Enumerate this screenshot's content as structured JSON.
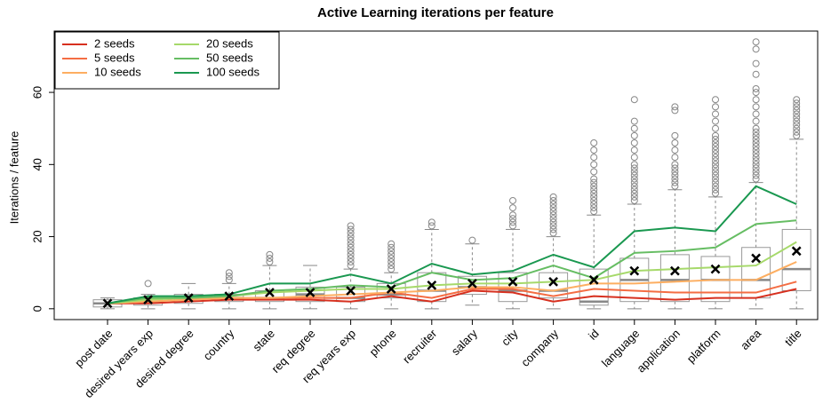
{
  "chart_data": {
    "type": "boxplot",
    "title": "Active Learning iterations per feature",
    "ylabel": "Iterations / feature",
    "categories": [
      "post date",
      "desired years exp",
      "desired degree",
      "country",
      "state",
      "req degree",
      "req years exp",
      "phone",
      "recruiter",
      "salary",
      "city",
      "company",
      "id",
      "language",
      "application",
      "platform",
      "area",
      "title"
    ],
    "boxes": [
      {
        "whislo": 0,
        "q1": 0.5,
        "med": 1.5,
        "q3": 2.5,
        "whishi": 3,
        "mean": 1.5,
        "outliers": []
      },
      {
        "whislo": 0,
        "q1": 1,
        "med": 2,
        "q3": 3,
        "whishi": 4,
        "mean": 2.5,
        "outliers": [
          7
        ]
      },
      {
        "whislo": 0,
        "q1": 1.5,
        "med": 3,
        "q3": 4,
        "whishi": 7,
        "mean": 3,
        "outliers": []
      },
      {
        "whislo": 0,
        "q1": 2,
        "med": 3,
        "q3": 4,
        "whishi": 7,
        "mean": 3.5,
        "outliers": [
          8,
          9,
          10
        ]
      },
      {
        "whislo": 0,
        "q1": 2,
        "med": 3,
        "q3": 5,
        "whishi": 12,
        "mean": 4.5,
        "outliers": [
          13,
          14,
          15
        ]
      },
      {
        "whislo": 0,
        "q1": 2,
        "med": 4,
        "q3": 6,
        "whishi": 12,
        "mean": 4.5,
        "outliers": []
      },
      {
        "whislo": 0,
        "q1": 2,
        "med": 3,
        "q3": 6,
        "whishi": 11,
        "mean": 5,
        "outliers": [
          12,
          13,
          14,
          15,
          16,
          17,
          18,
          19,
          20,
          21,
          22,
          23
        ]
      },
      {
        "whislo": 0,
        "q1": 3,
        "med": 4,
        "q3": 7,
        "whishi": 10,
        "mean": 5.5,
        "outliers": [
          11,
          12,
          13,
          14,
          15,
          16,
          17,
          18
        ]
      },
      {
        "whislo": 0,
        "q1": 2,
        "med": 5,
        "q3": 10,
        "whishi": 22,
        "mean": 6.5,
        "outliers": [
          23,
          24
        ]
      },
      {
        "whislo": 1,
        "q1": 4,
        "med": 6,
        "q3": 9,
        "whishi": 18,
        "mean": 7,
        "outliers": [
          19
        ]
      },
      {
        "whislo": 0,
        "q1": 2,
        "med": 5,
        "q3": 10,
        "whishi": 22,
        "mean": 7.5,
        "outliers": [
          23,
          24,
          25,
          26,
          28,
          30
        ]
      },
      {
        "whislo": 0,
        "q1": 3,
        "med": 5,
        "q3": 10,
        "whishi": 20,
        "mean": 7.5,
        "outliers": [
          21,
          22,
          23,
          24,
          25,
          26,
          27,
          28,
          29,
          30,
          31
        ]
      },
      {
        "whislo": 0,
        "q1": 1,
        "med": 2,
        "q3": 11,
        "whishi": 26,
        "mean": 8,
        "outliers": [
          27,
          28,
          29,
          30,
          31,
          32,
          33,
          34,
          35,
          36,
          38,
          40,
          42,
          44,
          46
        ]
      },
      {
        "whislo": 0,
        "q1": 2,
        "med": 8,
        "q3": 14,
        "whishi": 29,
        "mean": 10.5,
        "outliers": [
          30,
          31,
          32,
          33,
          34,
          35,
          36,
          37,
          38,
          39,
          40,
          42,
          44,
          46,
          48,
          50,
          52,
          58
        ]
      },
      {
        "whislo": 0,
        "q1": 2,
        "med": 8,
        "q3": 15,
        "whishi": 33,
        "mean": 10.5,
        "outliers": [
          34,
          35,
          36,
          37,
          38,
          39,
          40,
          42,
          44,
          46,
          48,
          55,
          56
        ]
      },
      {
        "whislo": 0,
        "q1": 2,
        "med": 8,
        "q3": 14.5,
        "whishi": 31,
        "mean": 11,
        "outliers": [
          32,
          33,
          34,
          35,
          36,
          37,
          38,
          39,
          40,
          41,
          42,
          43,
          44,
          45,
          46,
          47,
          48,
          50,
          52,
          54,
          56,
          58
        ]
      },
      {
        "whislo": 0,
        "q1": 3,
        "med": 8,
        "q3": 17,
        "whishi": 35,
        "mean": 14,
        "outliers": [
          36,
          37,
          38,
          39,
          40,
          41,
          42,
          43,
          44,
          45,
          46,
          47,
          48,
          49,
          50,
          52,
          54,
          56,
          58,
          60,
          61,
          65,
          68,
          72,
          74
        ]
      },
      {
        "whislo": 0,
        "q1": 5,
        "med": 11,
        "q3": 22,
        "whishi": 47,
        "mean": 16,
        "outliers": [
          48,
          49,
          50,
          51,
          52,
          53,
          54,
          55,
          56,
          57,
          58
        ]
      }
    ],
    "series": [
      {
        "name": "2 seeds",
        "color": "#d7301f",
        "values": [
          1.5,
          1.5,
          2,
          2.5,
          2.5,
          2.5,
          2,
          3.5,
          2,
          5,
          4.5,
          2,
          3.5,
          3,
          2.5,
          3,
          3,
          5.5
        ]
      },
      {
        "name": "5 seeds",
        "color": "#f46d43",
        "values": [
          1.5,
          2,
          2.5,
          3,
          3,
          3,
          3,
          4.5,
          3,
          5.5,
          5.5,
          3.5,
          5.5,
          5,
          4.5,
          4.5,
          4.5,
          7.5
        ]
      },
      {
        "name": "10 seeds",
        "color": "#fdae61",
        "values": [
          1.5,
          2,
          2.5,
          3,
          3,
          3.5,
          4,
          4.5,
          5,
          6,
          6,
          5,
          7,
          7,
          7.5,
          8,
          8,
          13
        ]
      },
      {
        "name": "20 seeds",
        "color": "#a6d96a",
        "values": [
          1.5,
          2.5,
          3,
          3.5,
          4.5,
          5,
          5.5,
          5.5,
          6.5,
          7,
          7,
          7.5,
          8,
          10.5,
          11,
          11.5,
          12,
          18.5
        ]
      },
      {
        "name": "50 seeds",
        "color": "#66bd63",
        "values": [
          1.5,
          3,
          3,
          3.5,
          5,
          5.5,
          6.5,
          6,
          10,
          8,
          8.5,
          12,
          8.5,
          15.5,
          16,
          17,
          23.5,
          24.5
        ]
      },
      {
        "name": "100 seeds",
        "color": "#1a9850",
        "values": [
          1.5,
          3.5,
          3.5,
          4,
          7,
          7,
          9.5,
          7,
          12.5,
          9.5,
          10.5,
          15,
          11.5,
          21.5,
          22.5,
          21.5,
          34,
          29
        ]
      }
    ],
    "ylim": [
      -3,
      77
    ],
    "yticks": [
      0,
      20,
      40,
      60
    ],
    "legend": "upper left"
  }
}
